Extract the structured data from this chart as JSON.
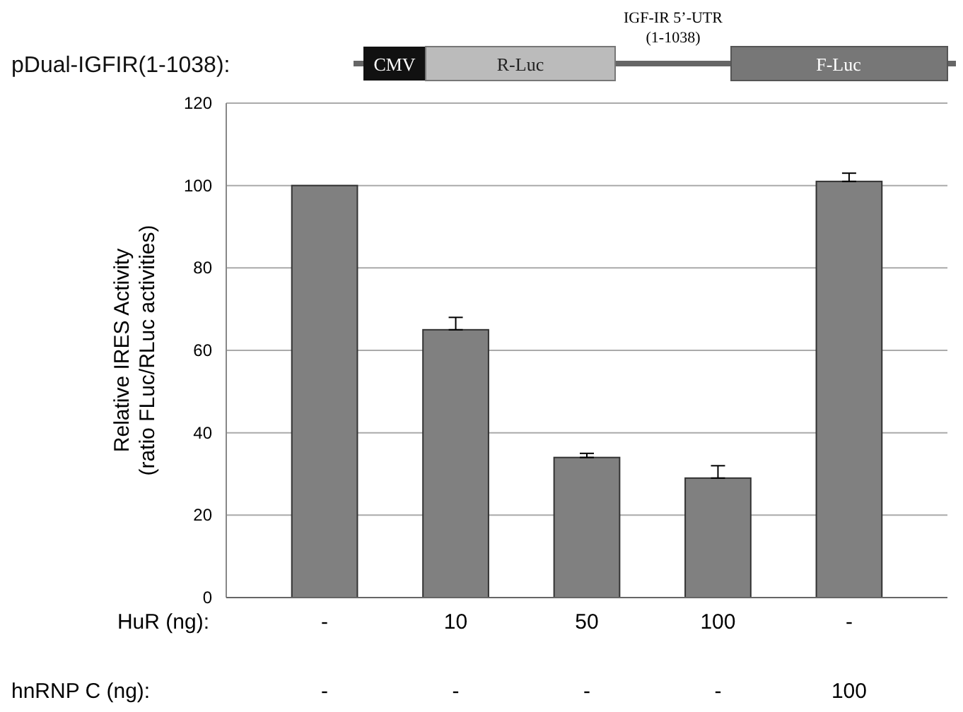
{
  "chart_data": {
    "type": "bar",
    "ylabel": "Relative IRES Activity\n(ratio FLuc/RLuc activities)",
    "xlabel": "HuR (ng):",
    "categories": [
      "-",
      "10",
      "50",
      "100",
      "-"
    ],
    "values": [
      100,
      65,
      34,
      29,
      101
    ],
    "errors": [
      null,
      [
        65,
        68
      ],
      [
        34,
        35
      ],
      [
        29,
        32
      ],
      [
        101,
        103
      ]
    ],
    "color": "#808080",
    "ylim": [
      0,
      120
    ],
    "yticks": [
      0,
      20,
      40,
      60,
      80,
      100,
      120
    ],
    "grid": "y",
    "annotations": [
      "pDual-IGFIR(1-1038):",
      "CMV",
      "R-Luc",
      "IGF-IR 5’-UTR\n(1-1038)",
      "F-Luc",
      "hnRNP C (ng):",
      "-",
      "-",
      "-",
      "-",
      "100"
    ]
  }
}
